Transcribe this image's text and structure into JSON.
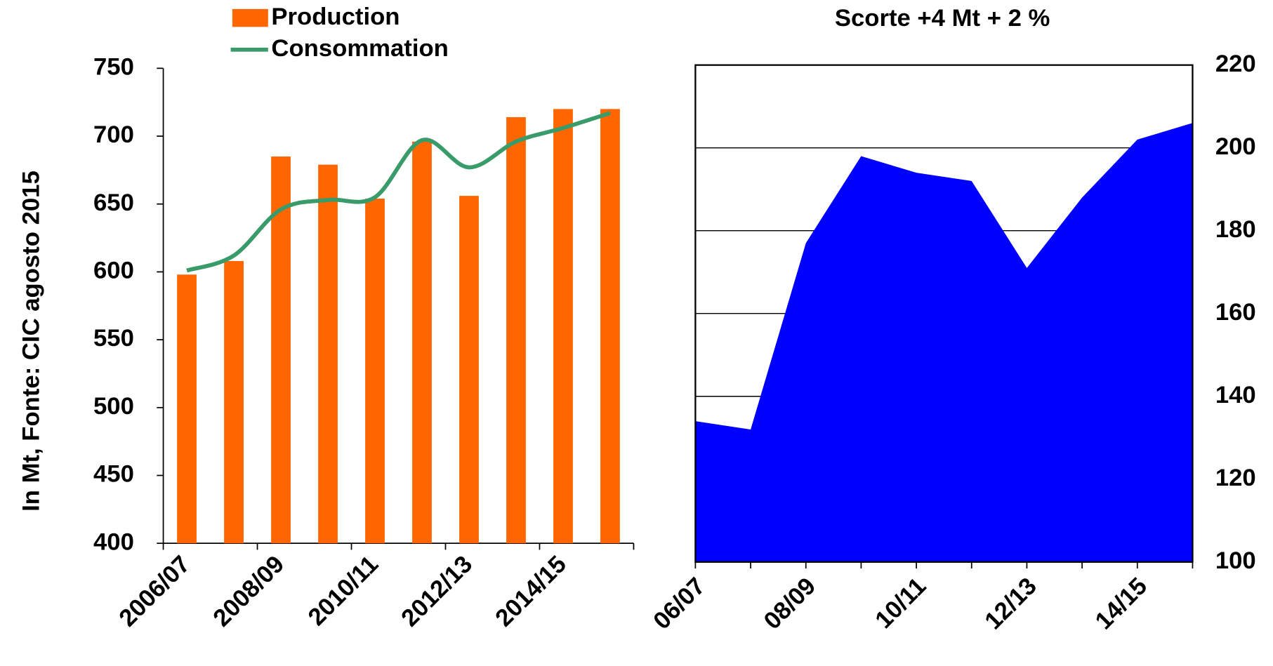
{
  "chart_data": [
    {
      "type": "bar",
      "y_label": "In Mt, Fonte: CIC agosto  2015",
      "categories": [
        "2006/07",
        null,
        "2008/09",
        null,
        "2010/11",
        null,
        "2012/13",
        null,
        "2014/15",
        null
      ],
      "series": [
        {
          "name": "Production",
          "kind": "bar",
          "color": "#ff6600",
          "values": [
            598,
            608,
            685,
            679,
            654,
            696,
            656,
            714,
            720,
            720
          ]
        },
        {
          "name": "Consommation",
          "kind": "line",
          "color": "#3a9b6a",
          "values": [
            601,
            612,
            646,
            653,
            655,
            697,
            677,
            696,
            706,
            717
          ]
        }
      ],
      "ylim": [
        400,
        750
      ],
      "yticks": [
        400,
        450,
        500,
        550,
        600,
        650,
        700,
        750
      ]
    },
    {
      "type": "area",
      "title": "Scorte +4 Mt + 2 %",
      "categories": [
        "06/07",
        null,
        "08/09",
        null,
        "10/11",
        null,
        "12/13",
        null,
        "14/15",
        null
      ],
      "values": [
        134,
        132,
        177,
        198,
        194,
        192,
        171,
        188,
        202,
        206
      ],
      "color": "#0000ff",
      "y_axis_side": "right",
      "grid": true,
      "ylim": [
        100,
        220
      ],
      "yticks": [
        100,
        120,
        140,
        160,
        180,
        200,
        220
      ]
    }
  ]
}
